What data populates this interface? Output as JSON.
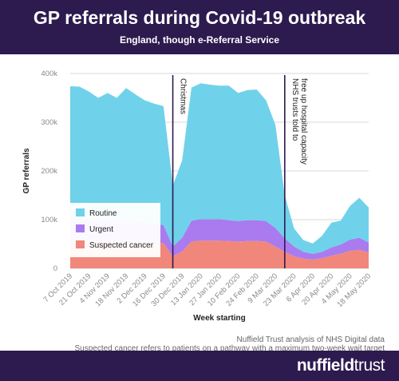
{
  "title": "GP referrals during Covid-19 outbreak",
  "subtitle": "England, though e-Referral Service",
  "source_note": "Nuffield Trust analysis of NHS Digital data",
  "footnote": "Suspected cancer refers to patients on a pathway with a maximum two-week wait target",
  "brand": {
    "bold": "nuffield",
    "light": "trust"
  },
  "colors": {
    "header": "#2d1a4f",
    "routine": "#6fd2ea",
    "urgent": "#a97bef",
    "cancer": "#f0877a",
    "annotation_line": "#2d1a4f"
  },
  "chart_data": {
    "type": "area",
    "stacked": true,
    "ylabel": "GP referrals",
    "xlabel": "Week starting",
    "ylim": [
      0,
      400000
    ],
    "yticks": [
      0,
      100000,
      200000,
      300000,
      400000
    ],
    "ytick_labels": [
      "0",
      "100k",
      "200k",
      "300k",
      "400k"
    ],
    "grid": true,
    "legend_position": "bottom-left",
    "x": [
      "7 Oct 2019",
      "14 Oct 2019",
      "21 Oct 2019",
      "28 Oct 2019",
      "4 Nov 2019",
      "11 Nov 2019",
      "18 Nov 2019",
      "25 Nov 2019",
      "2 Dec 2019",
      "9 Dec 2019",
      "16 Dec 2019",
      "23 Dec 2019",
      "30 Dec 2019",
      "6 Jan 2020",
      "13 Jan 2020",
      "20 Jan 2020",
      "27 Jan 2020",
      "3 Feb 2020",
      "10 Feb 2020",
      "17 Feb 2020",
      "24 Feb 2020",
      "2 Mar 2020",
      "9 Mar 2020",
      "16 Mar 2020",
      "23 Mar 2020",
      "30 Mar 2020",
      "6 Apr 2020",
      "13 Apr 2020",
      "20 Apr 2020",
      "27 Apr 2020",
      "4 May 2020",
      "11 May 2020",
      "18 May 2020"
    ],
    "x_tick_labels": [
      "7 Oct 2019",
      "21 Oct 2019",
      "4 Nov 2019",
      "18 Nov 2019",
      "2 Dec 2019",
      "16 Dec 2019",
      "30 Dec 2019",
      "13 Jan 2020",
      "27 Jan 2020",
      "10 Feb 2020",
      "24 Feb 2020",
      "9 Mar 2020",
      "23 Mar 2020",
      "6 Apr 2020",
      "20 Apr 2020",
      "4 May 2020",
      "18 May 2020"
    ],
    "series": [
      {
        "name": "Suspected cancer",
        "values": [
          57000,
          58000,
          57000,
          56000,
          57000,
          55000,
          57000,
          55000,
          54000,
          53000,
          52000,
          25000,
          35000,
          55000,
          57000,
          57000,
          57000,
          56000,
          55000,
          56000,
          56000,
          55000,
          45000,
          34000,
          25000,
          20000,
          18000,
          21000,
          26000,
          30000,
          36000,
          38000,
          33000
        ]
      },
      {
        "name": "Urgent",
        "values": [
          44000,
          43000,
          42000,
          40000,
          41000,
          40000,
          42000,
          40000,
          39000,
          38000,
          37000,
          20000,
          28000,
          43000,
          44000,
          44000,
          44000,
          43000,
          42000,
          43000,
          43000,
          42000,
          38000,
          28000,
          20000,
          14000,
          12000,
          13000,
          17000,
          19000,
          23000,
          25000,
          20000
        ]
      },
      {
        "name": "Routine",
        "values": [
          273000,
          272000,
          264000,
          254000,
          262000,
          255000,
          271000,
          262000,
          252000,
          247000,
          244000,
          125000,
          159000,
          273000,
          279000,
          276000,
          274000,
          276000,
          263000,
          267000,
          268000,
          248000,
          212000,
          88000,
          37000,
          24000,
          21000,
          33000,
          51000,
          49000,
          69000,
          82000,
          72000
        ]
      }
    ],
    "annotations": [
      {
        "label": "Christmas",
        "x": "23 Dec 2019"
      },
      {
        "label": "NHS trusts told to free up hospital capacity",
        "lines": [
          "NHS trusts told to",
          "free up hospital capacity"
        ],
        "x": "16 Mar 2020"
      }
    ]
  }
}
